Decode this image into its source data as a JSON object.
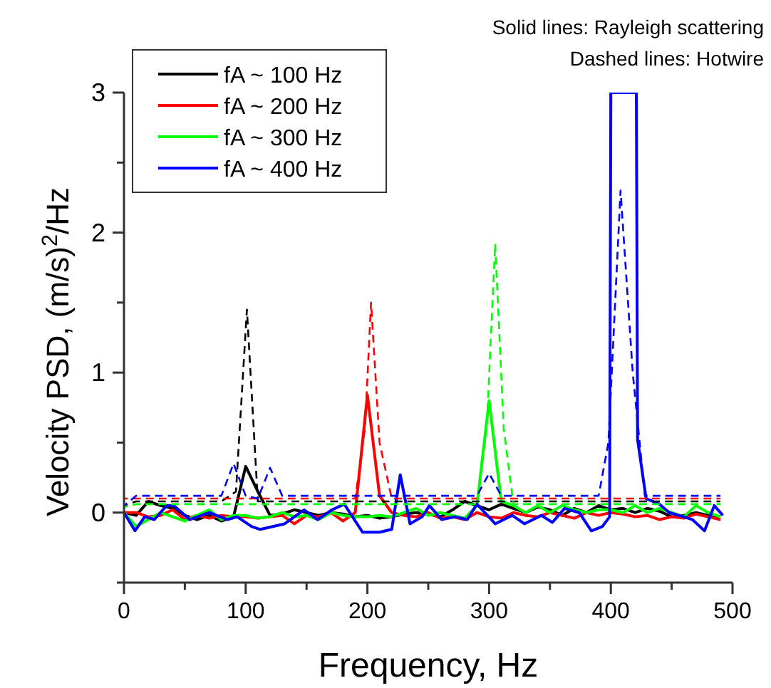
{
  "chart_data": {
    "type": "line",
    "xlabel": "Frequency, Hz",
    "ylabel": "Velocity PSD, (m/s)$^{2}$/Hz",
    "annotations": [
      "Solid lines: Rayleigh scattering",
      "Dashed lines: Hotwire"
    ],
    "xlim": [
      0,
      500
    ],
    "xticks": [
      0,
      {
        "value": 50,
        "label": null
      },
      100,
      {
        "value": 150,
        "label": null
      },
      200,
      {
        "value": 250,
        "label": null
      },
      300,
      {
        "value": 350,
        "label": null
      },
      400,
      {
        "value": 450,
        "label": null
      },
      500
    ],
    "ylim": [
      -0.5,
      3
    ],
    "yticks": [
      {
        "value": -0.5,
        "label": null
      },
      0,
      {
        "value": 0.5,
        "label": null
      },
      1,
      {
        "value": 1.5,
        "label": null
      },
      2,
      {
        "value": 2.5,
        "label": null
      },
      3
    ],
    "grid": false,
    "legend": "top left",
    "marker": "none",
    "x": [
      0,
      10,
      20,
      30,
      40,
      50,
      60,
      70,
      80,
      90,
      100,
      110,
      120,
      130,
      140,
      150,
      160,
      170,
      180,
      190,
      200,
      210,
      220,
      230,
      240,
      250,
      260,
      270,
      280,
      290,
      300,
      310,
      320,
      330,
      340,
      350,
      360,
      370,
      380,
      390,
      400,
      410,
      420,
      430,
      440,
      450,
      460,
      470,
      480,
      490
    ],
    "series": [
      {
        "name": "fA ~ 100 Hz",
        "color": "#000000",
        "line_style": "solid",
        "values": [
          0,
          -0.02,
          0.08,
          0.05,
          0.03,
          -0.02,
          -0.05,
          -0.02,
          -0.06,
          -0.03,
          0.33,
          0.15,
          -0.02,
          -0.01,
          0.02,
          0.0,
          -0.02,
          0.0,
          -0.01,
          -0.03,
          -0.02,
          -0.04,
          -0.03,
          -0.01,
          0.0,
          -0.01,
          -0.03,
          0.02,
          0.08,
          0.05,
          0.02,
          0.06,
          0.03,
          0.0,
          0.04,
          0.02,
          -0.02,
          0.03,
          0.0,
          0.05,
          0.02,
          0.03,
          0.0,
          0.03,
          0.01,
          -0.03,
          -0.02,
          0.0,
          -0.02,
          -0.05
        ]
      },
      {
        "name": "fA ~ 200 Hz",
        "color": "#ff0000",
        "line_style": "solid",
        "values": [
          0,
          0.0,
          -0.03,
          -0.02,
          0.02,
          -0.05,
          -0.02,
          -0.04,
          -0.02,
          -0.03,
          -0.03,
          -0.04,
          -0.03,
          -0.02,
          -0.08,
          -0.02,
          -0.03,
          0.0,
          -0.06,
          0.0,
          0.84,
          0.12,
          0.0,
          -0.02,
          -0.03,
          0.0,
          -0.04,
          -0.03,
          -0.05,
          0.0,
          -0.03,
          -0.04,
          0.0,
          -0.02,
          -0.03,
          0.0,
          -0.02,
          -0.04,
          0.0,
          -0.02,
          0.0,
          -0.01,
          -0.03,
          -0.02,
          -0.05,
          -0.03,
          -0.04,
          -0.01,
          -0.03,
          -0.05
        ]
      },
      {
        "name": "fA ~ 300 Hz",
        "color": "#00ff00",
        "line_style": "solid",
        "values": [
          0,
          -0.1,
          -0.05,
          0.0,
          -0.03,
          -0.06,
          -0.02,
          0.02,
          -0.05,
          -0.02,
          -0.02,
          -0.04,
          -0.03,
          0.0,
          -0.03,
          -0.02,
          -0.05,
          0.0,
          -0.02,
          -0.03,
          -0.03,
          -0.02,
          -0.03,
          0.0,
          0.03,
          -0.02,
          0.0,
          -0.02,
          -0.04,
          0.05,
          0.8,
          0.08,
          0.05,
          0.0,
          0.05,
          0.0,
          0.05,
          0.02,
          0.0,
          0.02,
          0.02,
          0.0,
          0.05,
          0.0,
          0.03,
          0.0,
          -0.03,
          0.05,
          0.0,
          -0.03
        ]
      },
      {
        "name": "fA ~ 400 Hz",
        "color": "#0000ff",
        "line_style": "solid",
        "x": [
          0,
          9,
          17,
          25,
          35,
          41,
          54,
          70,
          85,
          93,
          105,
          112,
          132,
          148,
          159,
          171,
          181,
          187,
          196,
          210,
          220,
          227,
          235,
          245,
          251,
          261,
          272,
          282,
          290,
          305,
          319,
          329,
          343,
          352,
          362,
          374,
          384,
          393,
          399,
          400,
          421,
          422,
          429,
          440,
          448,
          460,
          467,
          477,
          485,
          492
        ],
        "values": [
          0,
          -0.13,
          -0.03,
          -0.05,
          0.05,
          0.05,
          -0.05,
          0,
          -0.05,
          -0.03,
          -0.1,
          -0.12,
          -0.08,
          0.02,
          -0.05,
          0.02,
          0.06,
          -0.02,
          -0.14,
          -0.14,
          -0.12,
          0.27,
          -0.08,
          -0.03,
          0.05,
          -0.05,
          -0.03,
          -0.05,
          0.06,
          -0.08,
          -0.02,
          -0.08,
          -0.02,
          -0.07,
          0.03,
          0,
          -0.13,
          -0.1,
          -0.03,
          3,
          3,
          0.52,
          0.1,
          0.06,
          0,
          -0.03,
          -0.05,
          -0.13,
          0.05,
          -0.02
        ]
      },
      {
        "color": "#000000",
        "line_style": "dashed",
        "x": [
          0,
          10,
          80,
          92,
          101,
          110,
          120,
          490
        ],
        "values": [
          0.05,
          0.08,
          0.08,
          0.15,
          1.45,
          0.08,
          0.08,
          0.08
        ]
      },
      {
        "color": "#ff0000",
        "line_style": "dashed",
        "x": [
          0,
          10,
          190,
          198,
          203,
          210,
          220,
          490
        ],
        "values": [
          0.1,
          0.1,
          0.1,
          0.6,
          1.5,
          0.5,
          0.1,
          0.1
        ]
      },
      {
        "color": "#00ff00",
        "line_style": "dashed",
        "x": [
          0,
          10,
          290,
          298,
          305,
          312,
          320,
          490
        ],
        "values": [
          0.04,
          0.06,
          0.06,
          0.6,
          1.92,
          0.6,
          0.06,
          0.06
        ]
      },
      {
        "color": "#0000ff",
        "line_style": "dashed",
        "x": [
          0,
          10,
          80,
          90,
          100,
          110,
          120,
          130,
          290,
          300,
          310,
          320,
          390,
          398,
          408,
          418,
          428,
          440,
          490
        ],
        "values": [
          0.05,
          0.12,
          0.12,
          0.35,
          0.12,
          0.1,
          0.32,
          0.12,
          0.12,
          0.28,
          0.12,
          0.12,
          0.12,
          0.5,
          2.3,
          1.0,
          0.12,
          0.12,
          0.12
        ]
      }
    ]
  }
}
